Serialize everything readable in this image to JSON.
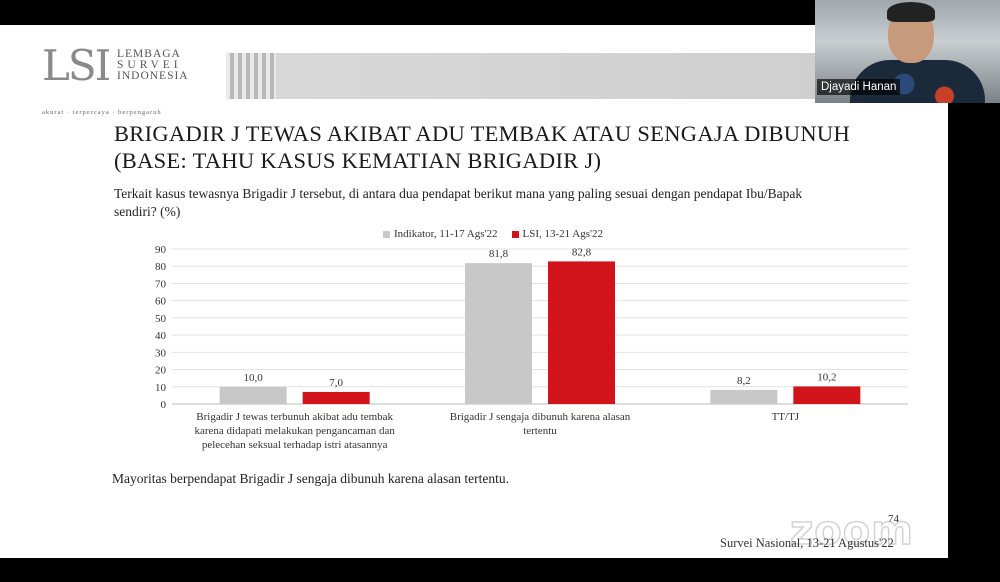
{
  "logo": {
    "mark": "LSI",
    "line1": "LEMBAGA",
    "line2": "SURVEI",
    "line3": "INDONESIA",
    "tagline": "akurat · terpercaya · berpengaruh"
  },
  "slide": {
    "title": "BRIGADIR J TEWAS AKIBAT ADU TEMBAK ATAU SENGAJA DIBUNUH\n(BASE: TAHU KASUS KEMATIAN BRIGADIR J)",
    "question": "Terkait kasus tewasnya Brigadir J tersebut, di antara dua pendapat berikut mana yang paling sesuai dengan pendapat Ibu/Bapak sendiri? (%)",
    "note": "Mayoritas berpendapat Brigadir J sengaja dibunuh karena alasan tertentu.",
    "page_number": "74",
    "survey_label": "Survei Nasional, 13-21 Agustus'22"
  },
  "video": {
    "participant_name": "Djayadi Hanan",
    "watermark": "zoom"
  },
  "chart_data": {
    "type": "bar",
    "categories": [
      "Brigadir J tewas terbunuh akibat adu tembak karena didapati melakukan pengancaman dan pelecehan seksual terhadap istri atasannya",
      "Brigadir J sengaja dibunuh karena alasan tertentu",
      "TT/TJ"
    ],
    "series": [
      {
        "name": "Indikator, 11-17 Ags'22",
        "values": [
          10.0,
          81.8,
          8.2
        ],
        "labels": [
          "10,0",
          "81,8",
          "8,2"
        ],
        "color": "#c8c8c8"
      },
      {
        "name": "LSI, 13-21 Ags'22",
        "values": [
          7.0,
          82.8,
          10.2
        ],
        "labels": [
          "7,0",
          "82,8",
          "10,2"
        ],
        "color": "#d0141a"
      }
    ],
    "ylim": [
      0,
      90
    ],
    "yticks": [
      0,
      10,
      20,
      30,
      40,
      50,
      60,
      70,
      80,
      90
    ],
    "grid": true,
    "legend": "top-center"
  }
}
